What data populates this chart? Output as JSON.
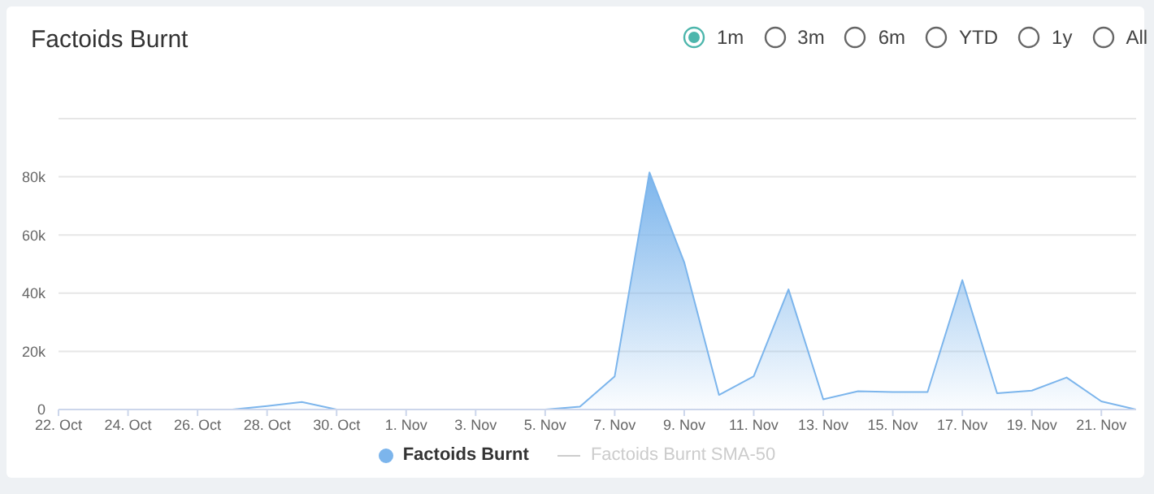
{
  "chart_data": {
    "type": "area",
    "title": "Factoids Burnt",
    "x": [
      "--10-22",
      "--10-23",
      "--10-24",
      "--10-25",
      "--10-26",
      "--10-27",
      "--10-28",
      "--10-29",
      "--10-30",
      "--10-31",
      "--11-01",
      "--11-02",
      "--11-03",
      "--11-04",
      "--11-05",
      "--11-06",
      "--11-07",
      "--11-08",
      "--11-09",
      "--11-10",
      "--11-11",
      "--11-12",
      "--11-13",
      "--11-14",
      "--11-15",
      "--11-16",
      "--11-17",
      "--11-18",
      "--11-19",
      "--11-20",
      "--11-21",
      "--11-22"
    ],
    "series": [
      {
        "name": "Factoids Burnt",
        "color": "#7cb5ec",
        "values": [
          0,
          0,
          0,
          0,
          0,
          0,
          1200,
          2600,
          0,
          0,
          0,
          0,
          0,
          0,
          0,
          1000,
          11400,
          81500,
          50600,
          5000,
          11400,
          41300,
          3500,
          6300,
          6000,
          6000,
          44500,
          5600,
          6500,
          11000,
          2800,
          0
        ]
      },
      {
        "name": "Factoids Burnt SMA-50",
        "type": "line",
        "color": "#cccccc",
        "values": [
          null,
          null,
          null,
          null,
          null,
          null,
          null,
          null,
          null,
          null,
          null,
          null,
          null,
          null,
          null,
          null,
          null,
          null,
          null,
          null,
          null,
          null,
          null,
          null,
          null,
          null,
          null,
          null,
          null,
          null,
          null,
          null
        ]
      }
    ],
    "xlim": [
      "--10-22",
      "--11-22"
    ],
    "xticks": [
      {
        "value": "--10-22",
        "label": "22. Oct"
      },
      {
        "value": "--10-24",
        "label": "24. Oct"
      },
      {
        "value": "--10-26",
        "label": "26. Oct"
      },
      {
        "value": "--10-28",
        "label": "28. Oct"
      },
      {
        "value": "--10-30",
        "label": "30. Oct"
      },
      {
        "value": "--11-01",
        "label": "1. Nov"
      },
      {
        "value": "--11-03",
        "label": "3. Nov"
      },
      {
        "value": "--11-05",
        "label": "5. Nov"
      },
      {
        "value": "--11-07",
        "label": "7. Nov"
      },
      {
        "value": "--11-09",
        "label": "9. Nov"
      },
      {
        "value": "--11-11",
        "label": "11. Nov"
      },
      {
        "value": "--11-13",
        "label": "13. Nov"
      },
      {
        "value": "--11-15",
        "label": "15. Nov"
      },
      {
        "value": "--11-17",
        "label": "17. Nov"
      },
      {
        "value": "--11-19",
        "label": "19. Nov"
      },
      {
        "value": "--11-21",
        "label": "21. Nov"
      }
    ],
    "ylim": [
      0,
      100000
    ],
    "yticks": [
      {
        "value": 0,
        "label": "0"
      },
      {
        "value": 20000,
        "label": "20k"
      },
      {
        "value": 40000,
        "label": "40k"
      },
      {
        "value": 60000,
        "label": "60k"
      },
      {
        "value": 80000,
        "label": "80k"
      },
      {
        "value": 100000,
        "label": null
      }
    ],
    "grid": "y",
    "legend": "bottom",
    "marker": "none",
    "annotations": [
      "1m",
      "3m",
      "6m",
      "YTD",
      "1y",
      "All"
    ]
  }
}
